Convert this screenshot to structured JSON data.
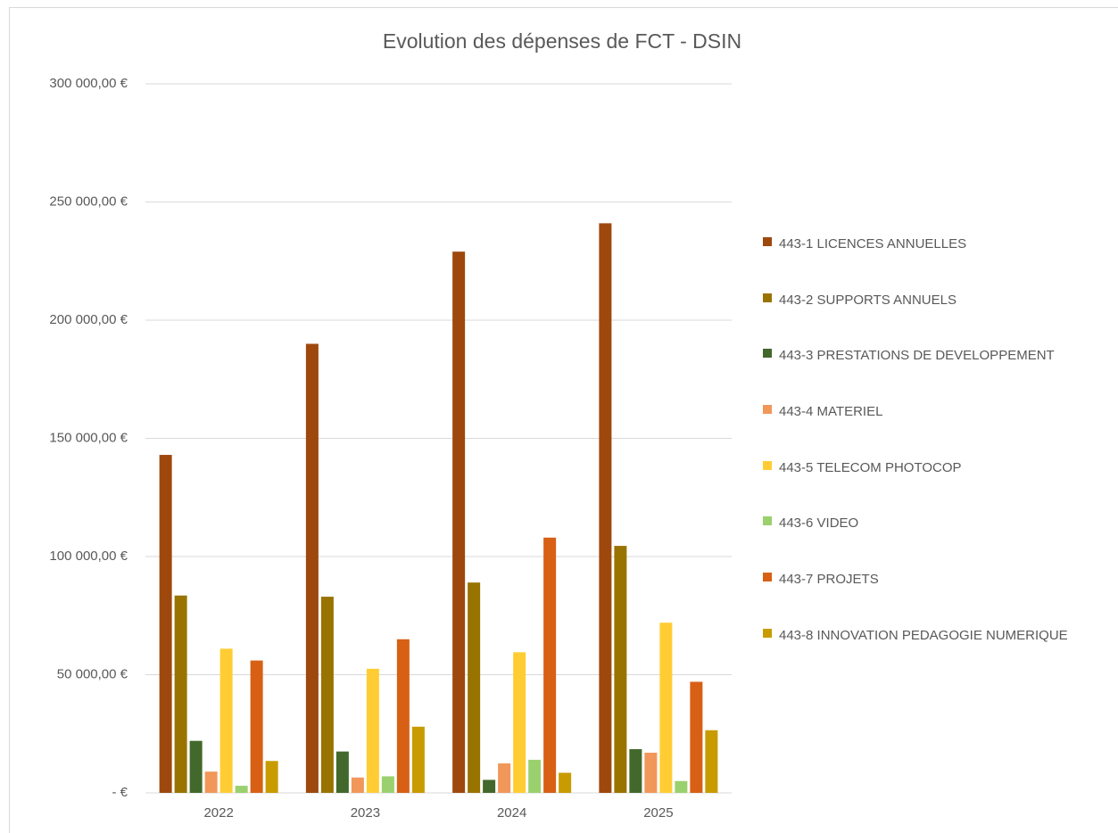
{
  "chart_data": {
    "type": "bar",
    "title": "Evolution des dépenses de FCT - DSIN",
    "categories": [
      "2022",
      "2023",
      "2024",
      "2025"
    ],
    "series": [
      {
        "name": "443-1 LICENCES ANNUELLES",
        "color": "#9e480e",
        "values": [
          143000,
          190000,
          229000,
          241000
        ]
      },
      {
        "name": "443-2 SUPPORTS ANNUELS",
        "color": "#997300",
        "values": [
          83500,
          83000,
          89000,
          104500
        ]
      },
      {
        "name": "443-3 PRESTATIONS DE DEVELOPPEMENT",
        "color": "#43682b",
        "values": [
          22000,
          17500,
          5500,
          18500
        ]
      },
      {
        "name": "443-4 MATERIEL",
        "color": "#f1975a",
        "values": [
          9000,
          6500,
          12500,
          17000
        ]
      },
      {
        "name": "443-5 TELECOM PHOTOCOP",
        "color": "#ffcd33",
        "values": [
          61000,
          52500,
          59500,
          72000
        ]
      },
      {
        "name": "443-6 VIDEO",
        "color": "#9bd06e",
        "values": [
          3000,
          7000,
          14000,
          5000
        ]
      },
      {
        "name": "443-7 PROJETS",
        "color": "#d76015",
        "values": [
          56000,
          65000,
          108000,
          47000
        ]
      },
      {
        "name": "443-8 INNOVATION PEDAGOGIE NUMERIQUE",
        "color": "#c89b00",
        "values": [
          13500,
          28000,
          8500,
          26500
        ]
      }
    ],
    "ylim": [
      0,
      300000
    ],
    "yticks": [
      {
        "value": 0,
        "label": "-  €"
      },
      {
        "value": 50000,
        "label": "50 000,00 €"
      },
      {
        "value": 100000,
        "label": "100 000,00 €"
      },
      {
        "value": 150000,
        "label": "150 000,00 €"
      },
      {
        "value": 200000,
        "label": "200 000,00 €"
      },
      {
        "value": 250000,
        "label": "250 000,00 €"
      },
      {
        "value": 300000,
        "label": "300 000,00 €"
      }
    ],
    "grid": true
  }
}
